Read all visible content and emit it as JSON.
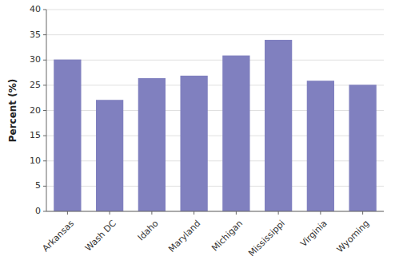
{
  "chart_data": {
    "type": "bar",
    "categories": [
      "Arkansas",
      "Wash DC",
      "Idaho",
      "Maryland",
      "Michigan",
      "Mississippi",
      "Virginia",
      "Wyoming"
    ],
    "values": [
      30.1,
      22.1,
      26.4,
      26.9,
      30.9,
      34.0,
      25.9,
      25.1
    ],
    "color": "#8080bf",
    "y_label": "Percent (%)",
    "ylim": [
      0,
      40
    ],
    "yticks": [
      0,
      5,
      10,
      15,
      20,
      25,
      30,
      35,
      40
    ],
    "grid": true
  }
}
